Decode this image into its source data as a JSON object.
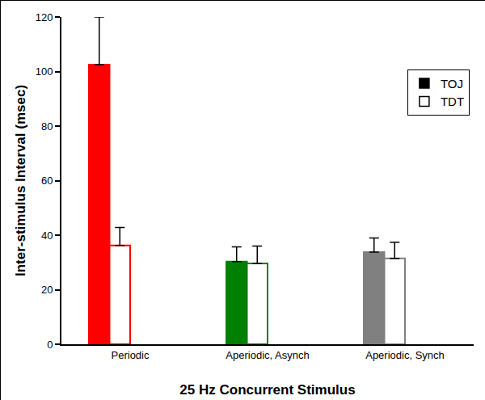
{
  "chart_data": {
    "type": "bar",
    "x_label": "25 Hz Concurrent Stimulus",
    "y_label": "Inter-stimulus Interval (msec)",
    "categories": [
      "Periodic",
      "Aperiodic, Asynch",
      "Aperiodic, Synch"
    ],
    "series": [
      {
        "name": "TOJ",
        "color": "#000000",
        "marker": "filled",
        "colors": [
          "#ff0000",
          "#008000",
          "#808080"
        ],
        "values": [
          102.5,
          30.3,
          33.8
        ],
        "errors": [
          17.5,
          5.4,
          5.2
        ]
      },
      {
        "name": "TDT",
        "color": "#ffffff",
        "marker": "open",
        "colors": [
          "#ff0000",
          "#008000",
          "#808080"
        ],
        "values": [
          36.2,
          29.6,
          31.5
        ],
        "errors": [
          6.6,
          6.4,
          5.9
        ]
      }
    ],
    "ylim": [
      0,
      120
    ],
    "yticks": [
      0,
      20,
      40,
      60,
      80,
      100,
      120
    ],
    "grid": false,
    "legend": "top right"
  }
}
